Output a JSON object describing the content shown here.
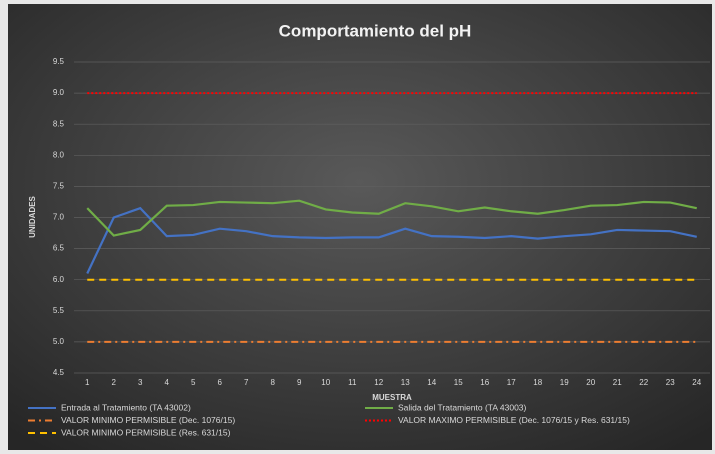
{
  "chart_data": {
    "type": "line",
    "title": "Comportamiento del pH",
    "x_label": "MUESTRA",
    "y_label": "UNIDADES",
    "categories": [
      "1",
      "2",
      "3",
      "4",
      "5",
      "6",
      "7",
      "8",
      "9",
      "10",
      "11",
      "12",
      "13",
      "14",
      "15",
      "16",
      "17",
      "18",
      "19",
      "20",
      "21",
      "22",
      "23",
      "24"
    ],
    "ylim": [
      4.5,
      9.5
    ],
    "yticks": [
      4.5,
      {
        "value": 5,
        "label": "5.0"
      },
      5.5,
      {
        "value": 6,
        "label": "6.0"
      },
      6.5,
      {
        "value": 7,
        "label": "7.0"
      },
      7.5,
      {
        "value": 8,
        "label": "8.0"
      },
      8.5,
      {
        "value": 9,
        "label": "9.0"
      },
      9.5
    ],
    "grid": true,
    "legend": "bottom",
    "series": [
      {
        "name": "Entrada al Tratamiento (TA 43002)",
        "color": "#4472c4",
        "line_style": "solid",
        "values": [
          6.1,
          7.0,
          7.15,
          6.7,
          6.72,
          6.82,
          6.78,
          6.7,
          6.68,
          6.67,
          6.68,
          6.68,
          6.82,
          6.7,
          6.69,
          6.67,
          6.7,
          6.66,
          6.7,
          6.73,
          6.8,
          6.79,
          6.78,
          6.69
        ]
      },
      {
        "name": "Salida del Tratamiento (TA 43003)",
        "color": "#70ad47",
        "line_style": "solid",
        "values": [
          7.15,
          6.71,
          6.8,
          7.19,
          7.2,
          7.25,
          7.24,
          7.23,
          7.27,
          7.13,
          7.08,
          7.06,
          7.23,
          7.18,
          7.1,
          7.16,
          7.1,
          7.06,
          7.12,
          7.19,
          7.2,
          7.25,
          7.24,
          7.15
        ]
      },
      {
        "name": "VALOR MINIMO PERMISIBLE (Dec. 1076/15)",
        "color": "#ed7d31",
        "line_style": "dashdot",
        "values": [
          5,
          5,
          5,
          5,
          5,
          5,
          5,
          5,
          5,
          5,
          5,
          5,
          5,
          5,
          5,
          5,
          5,
          5,
          5,
          5,
          5,
          5,
          5,
          5
        ]
      },
      {
        "name": "VALOR MAXIMO PERMISIBLE (Dec. 1076/15 y Res. 631/15)",
        "color": "#ff0000",
        "line_style": "dotted",
        "values": [
          9,
          9,
          9,
          9,
          9,
          9,
          9,
          9,
          9,
          9,
          9,
          9,
          9,
          9,
          9,
          9,
          9,
          9,
          9,
          9,
          9,
          9,
          9,
          9
        ]
      },
      {
        "name": "VALOR MINIMO PERMISIBLE (Res. 631/15)",
        "color": "#ffc000",
        "line_style": "dashed",
        "values": [
          6,
          6,
          6,
          6,
          6,
          6,
          6,
          6,
          6,
          6,
          6,
          6,
          6,
          6,
          6,
          6,
          6,
          6,
          6,
          6,
          6,
          6,
          6,
          6
        ]
      }
    ]
  }
}
